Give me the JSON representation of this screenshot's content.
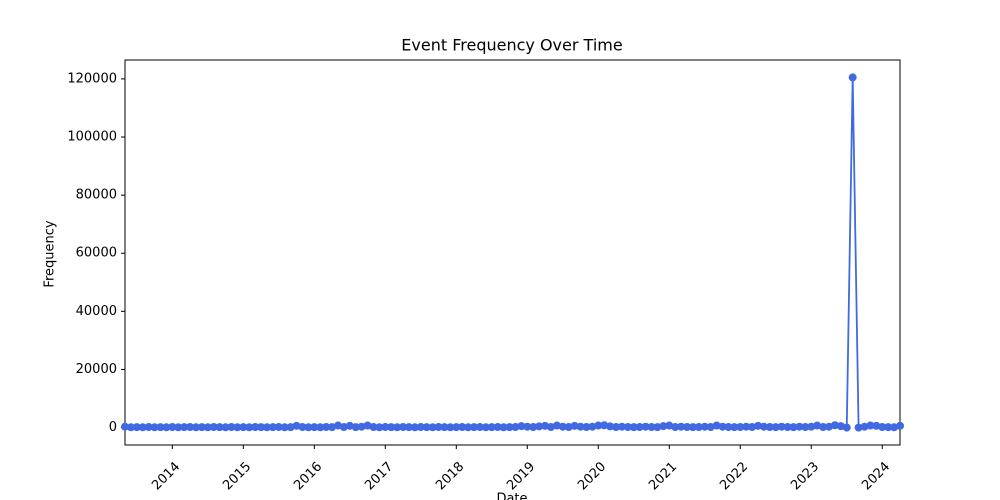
{
  "chart_data": {
    "type": "line",
    "title": "Event Frequency Over Time",
    "x_label": "Date",
    "y_label": "Frequency",
    "x": [
      "2013-05",
      "2013-06",
      "2013-07",
      "2013-08",
      "2013-09",
      "2013-10",
      "2013-11",
      "2013-12",
      "2014-01",
      "2014-02",
      "2014-03",
      "2014-04",
      "2014-05",
      "2014-06",
      "2014-07",
      "2014-08",
      "2014-09",
      "2014-10",
      "2014-11",
      "2014-12",
      "2015-01",
      "2015-02",
      "2015-03",
      "2015-04",
      "2015-05",
      "2015-06",
      "2015-07",
      "2015-08",
      "2015-09",
      "2015-10",
      "2015-11",
      "2015-12",
      "2016-01",
      "2016-02",
      "2016-03",
      "2016-04",
      "2016-05",
      "2016-06",
      "2016-07",
      "2016-08",
      "2016-09",
      "2016-10",
      "2016-11",
      "2016-12",
      "2017-01",
      "2017-02",
      "2017-03",
      "2017-04",
      "2017-05",
      "2017-06",
      "2017-07",
      "2017-08",
      "2017-09",
      "2017-10",
      "2017-11",
      "2017-12",
      "2018-01",
      "2018-02",
      "2018-03",
      "2018-04",
      "2018-05",
      "2018-06",
      "2018-07",
      "2018-08",
      "2018-09",
      "2018-10",
      "2018-11",
      "2018-12",
      "2019-01",
      "2019-02",
      "2019-03",
      "2019-04",
      "2019-05",
      "2019-06",
      "2019-07",
      "2019-08",
      "2019-09",
      "2019-10",
      "2019-11",
      "2019-12",
      "2020-01",
      "2020-02",
      "2020-03",
      "2020-04",
      "2020-05",
      "2020-06",
      "2020-07",
      "2020-08",
      "2020-09",
      "2020-10",
      "2020-11",
      "2020-12",
      "2021-01",
      "2021-02",
      "2021-03",
      "2021-04",
      "2021-05",
      "2021-06",
      "2021-07",
      "2021-08",
      "2021-09",
      "2021-10",
      "2021-11",
      "2021-12",
      "2022-01",
      "2022-02",
      "2022-03",
      "2022-04",
      "2022-05",
      "2022-06",
      "2022-07",
      "2022-08",
      "2022-09",
      "2022-10",
      "2022-11",
      "2022-12",
      "2023-01",
      "2023-02",
      "2023-03",
      "2023-04",
      "2023-05",
      "2023-06",
      "2023-07",
      "2023-08",
      "2023-09",
      "2023-10",
      "2023-11",
      "2023-12",
      "2024-01",
      "2024-02",
      "2024-03",
      "2024-04"
    ],
    "series": [
      {
        "name": "Frequency",
        "color": "#4169e1",
        "values": [
          300,
          100,
          150,
          100,
          200,
          100,
          150,
          100,
          200,
          100,
          150,
          200,
          100,
          150,
          100,
          200,
          150,
          100,
          200,
          100,
          150,
          100,
          200,
          150,
          100,
          150,
          200,
          100,
          150,
          600,
          200,
          100,
          150,
          100,
          200,
          150,
          700,
          200,
          600,
          150,
          300,
          700,
          200,
          100,
          200,
          150,
          100,
          200,
          150,
          100,
          200,
          150,
          100,
          200,
          150,
          100,
          150,
          200,
          100,
          150,
          200,
          100,
          150,
          200,
          100,
          150,
          200,
          500,
          300,
          200,
          400,
          600,
          200,
          700,
          300,
          200,
          600,
          300,
          200,
          300,
          700,
          800,
          400,
          200,
          300,
          200,
          150,
          200,
          300,
          200,
          150,
          500,
          700,
          200,
          300,
          200,
          150,
          200,
          300,
          200,
          700,
          300,
          200,
          150,
          200,
          300,
          200,
          600,
          300,
          200,
          150,
          300,
          200,
          150,
          300,
          200,
          300,
          700,
          200,
          300,
          800,
          500,
          0,
          120500,
          0,
          300,
          700,
          600,
          200,
          150,
          100,
          600
        ]
      }
    ],
    "xlim": [
      "2013-05",
      "2024-04"
    ],
    "xticks": [
      "2014",
      "2015",
      "2016",
      "2017",
      "2018",
      "2019",
      "2020",
      "2021",
      "2022",
      "2023",
      "2024"
    ],
    "ylim": [
      -6000,
      126500
    ],
    "yticks": [
      0,
      20000,
      40000,
      60000,
      80000,
      100000,
      120000
    ],
    "grid": false
  }
}
